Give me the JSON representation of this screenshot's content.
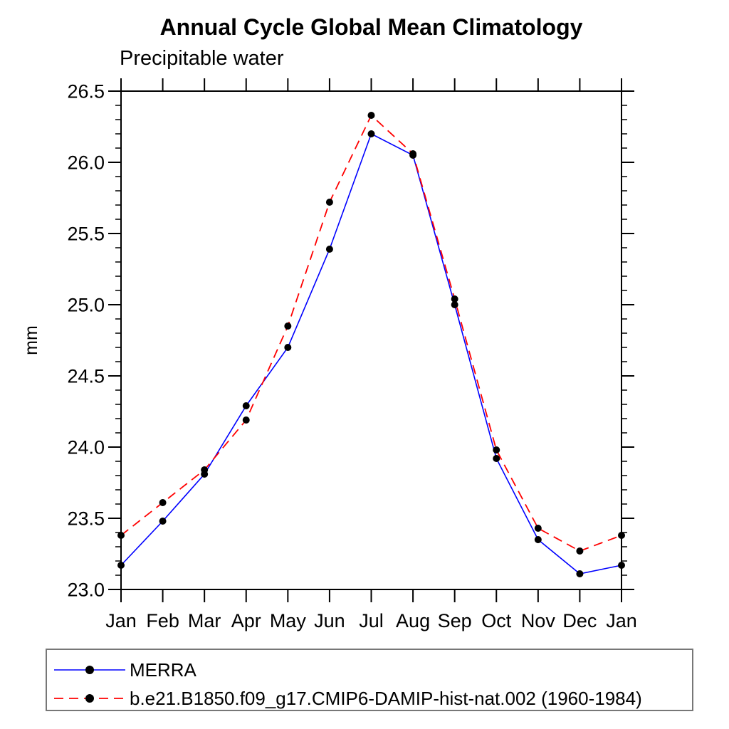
{
  "title": "Annual Cycle Global Mean Climatology",
  "subtitle": "Precipitable water",
  "y_axis": {
    "label": "mm",
    "tick_labels": [
      "26.5",
      "26.0",
      "25.5",
      "25.0",
      "24.5",
      "24.0",
      "23.5",
      "23.0"
    ]
  },
  "x_axis": {
    "tick_labels": [
      "Jan",
      "Feb",
      "Mar",
      "Apr",
      "May",
      "Jun",
      "Jul",
      "Aug",
      "Sep",
      "Oct",
      "Nov",
      "Dec",
      "Jan"
    ]
  },
  "colors": {
    "axis": "#000000",
    "marker": "#000000",
    "merra_line": "#0000ff",
    "model_line": "#ff0000",
    "background": "#ffffff"
  },
  "chart_data": {
    "type": "line",
    "title": "Annual Cycle Global Mean Climatology",
    "subtitle": "Precipitable water",
    "xlabel": "",
    "ylabel": "mm",
    "categories": [
      "Jan",
      "Feb",
      "Mar",
      "Apr",
      "May",
      "Jun",
      "Jul",
      "Aug",
      "Sep",
      "Oct",
      "Nov",
      "Dec",
      "Jan"
    ],
    "series": [
      {
        "name": "MERRA",
        "color": "#0000ff",
        "line_style": "solid",
        "marker": "filled-circle",
        "marker_color": "#000000",
        "values": [
          23.17,
          23.48,
          23.81,
          24.29,
          24.7,
          25.39,
          26.2,
          26.05,
          25.0,
          23.92,
          23.35,
          23.11,
          23.17
        ]
      },
      {
        "name": "b.e21.B1850.f09_g17.CMIP6-DAMIP-hist-nat.002 (1960-1984)",
        "color": "#ff0000",
        "line_style": "dashed",
        "marker": "filled-circle",
        "marker_color": "#000000",
        "values": [
          23.38,
          23.61,
          23.84,
          24.19,
          24.85,
          25.72,
          26.33,
          26.06,
          25.04,
          23.98,
          23.43,
          23.27,
          23.38
        ]
      }
    ],
    "ylim": [
      23.0,
      26.5
    ],
    "ytick_major": 0.5,
    "ytick_minor": 0.1,
    "grid": false,
    "legend_position": "bottom"
  }
}
